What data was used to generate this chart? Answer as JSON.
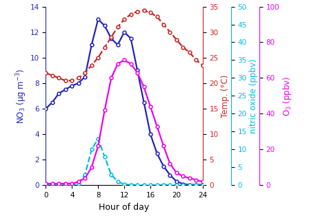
{
  "hours": [
    0,
    1,
    2,
    3,
    4,
    5,
    6,
    7,
    8,
    9,
    10,
    11,
    12,
    13,
    14,
    15,
    16,
    17,
    18,
    19,
    20,
    21,
    22,
    23,
    24
  ],
  "NO3": [
    6.0,
    6.5,
    7.2,
    7.5,
    7.8,
    8.0,
    8.5,
    11.0,
    13.0,
    12.5,
    11.5,
    11.0,
    12.0,
    11.5,
    9.0,
    6.5,
    4.0,
    2.5,
    1.5,
    0.8,
    0.3,
    0.1,
    0.05,
    0.05,
    0.05
  ],
  "NO": [
    0.05,
    0.05,
    0.05,
    0.05,
    0.05,
    0.5,
    3.0,
    10.0,
    13.0,
    8.0,
    3.0,
    1.0,
    0.3,
    0.1,
    0.05,
    0.05,
    0.05,
    0.05,
    0.05,
    0.05,
    0.05,
    0.05,
    0.05,
    0.05,
    0.05
  ],
  "Temp": [
    22.0,
    21.5,
    21.0,
    20.5,
    20.5,
    21.0,
    22.0,
    23.5,
    25.0,
    27.0,
    29.0,
    31.0,
    32.5,
    33.5,
    34.0,
    34.2,
    33.8,
    33.0,
    31.5,
    30.0,
    28.5,
    27.0,
    26.0,
    24.5,
    23.5
  ],
  "O3": [
    1.0,
    1.0,
    1.0,
    1.0,
    1.0,
    2.0,
    4.0,
    10.0,
    22.0,
    42.0,
    60.0,
    68.0,
    70.0,
    68.0,
    63.0,
    55.0,
    44.0,
    33.0,
    22.0,
    12.0,
    7.0,
    5.0,
    4.0,
    3.0,
    2.0
  ],
  "NO3_color": "#2222BB",
  "NO_color": "#00BBDD",
  "Temp_color": "#CC2222",
  "O3_color": "#EE00EE",
  "NO3_ylim": [
    0,
    14
  ],
  "NO3_yticks": [
    0,
    2,
    4,
    6,
    8,
    10,
    12,
    14
  ],
  "Temp_ylim": [
    0,
    35
  ],
  "Temp_yticks": [
    0,
    5,
    10,
    15,
    20,
    25,
    30,
    35
  ],
  "NO_ylim": [
    0,
    50
  ],
  "NO_yticks": [
    0,
    5,
    10,
    15,
    20,
    25,
    30,
    35,
    40,
    45,
    50
  ],
  "O3_ylim": [
    0,
    100
  ],
  "O3_yticks": [
    0,
    20,
    40,
    60,
    80,
    100
  ],
  "xlim": [
    0,
    24
  ],
  "xticks": [
    0,
    4,
    8,
    12,
    16,
    20,
    24
  ],
  "xlabel": "Hour of day",
  "ylabel_NO3": "NO$_3$ (μg m$^{-3}$)",
  "ylabel_NO": "nitric oxide (ppbv)",
  "ylabel_Temp": "Temp. (°C)",
  "ylabel_O3": "O$_3$ (ppbv)"
}
